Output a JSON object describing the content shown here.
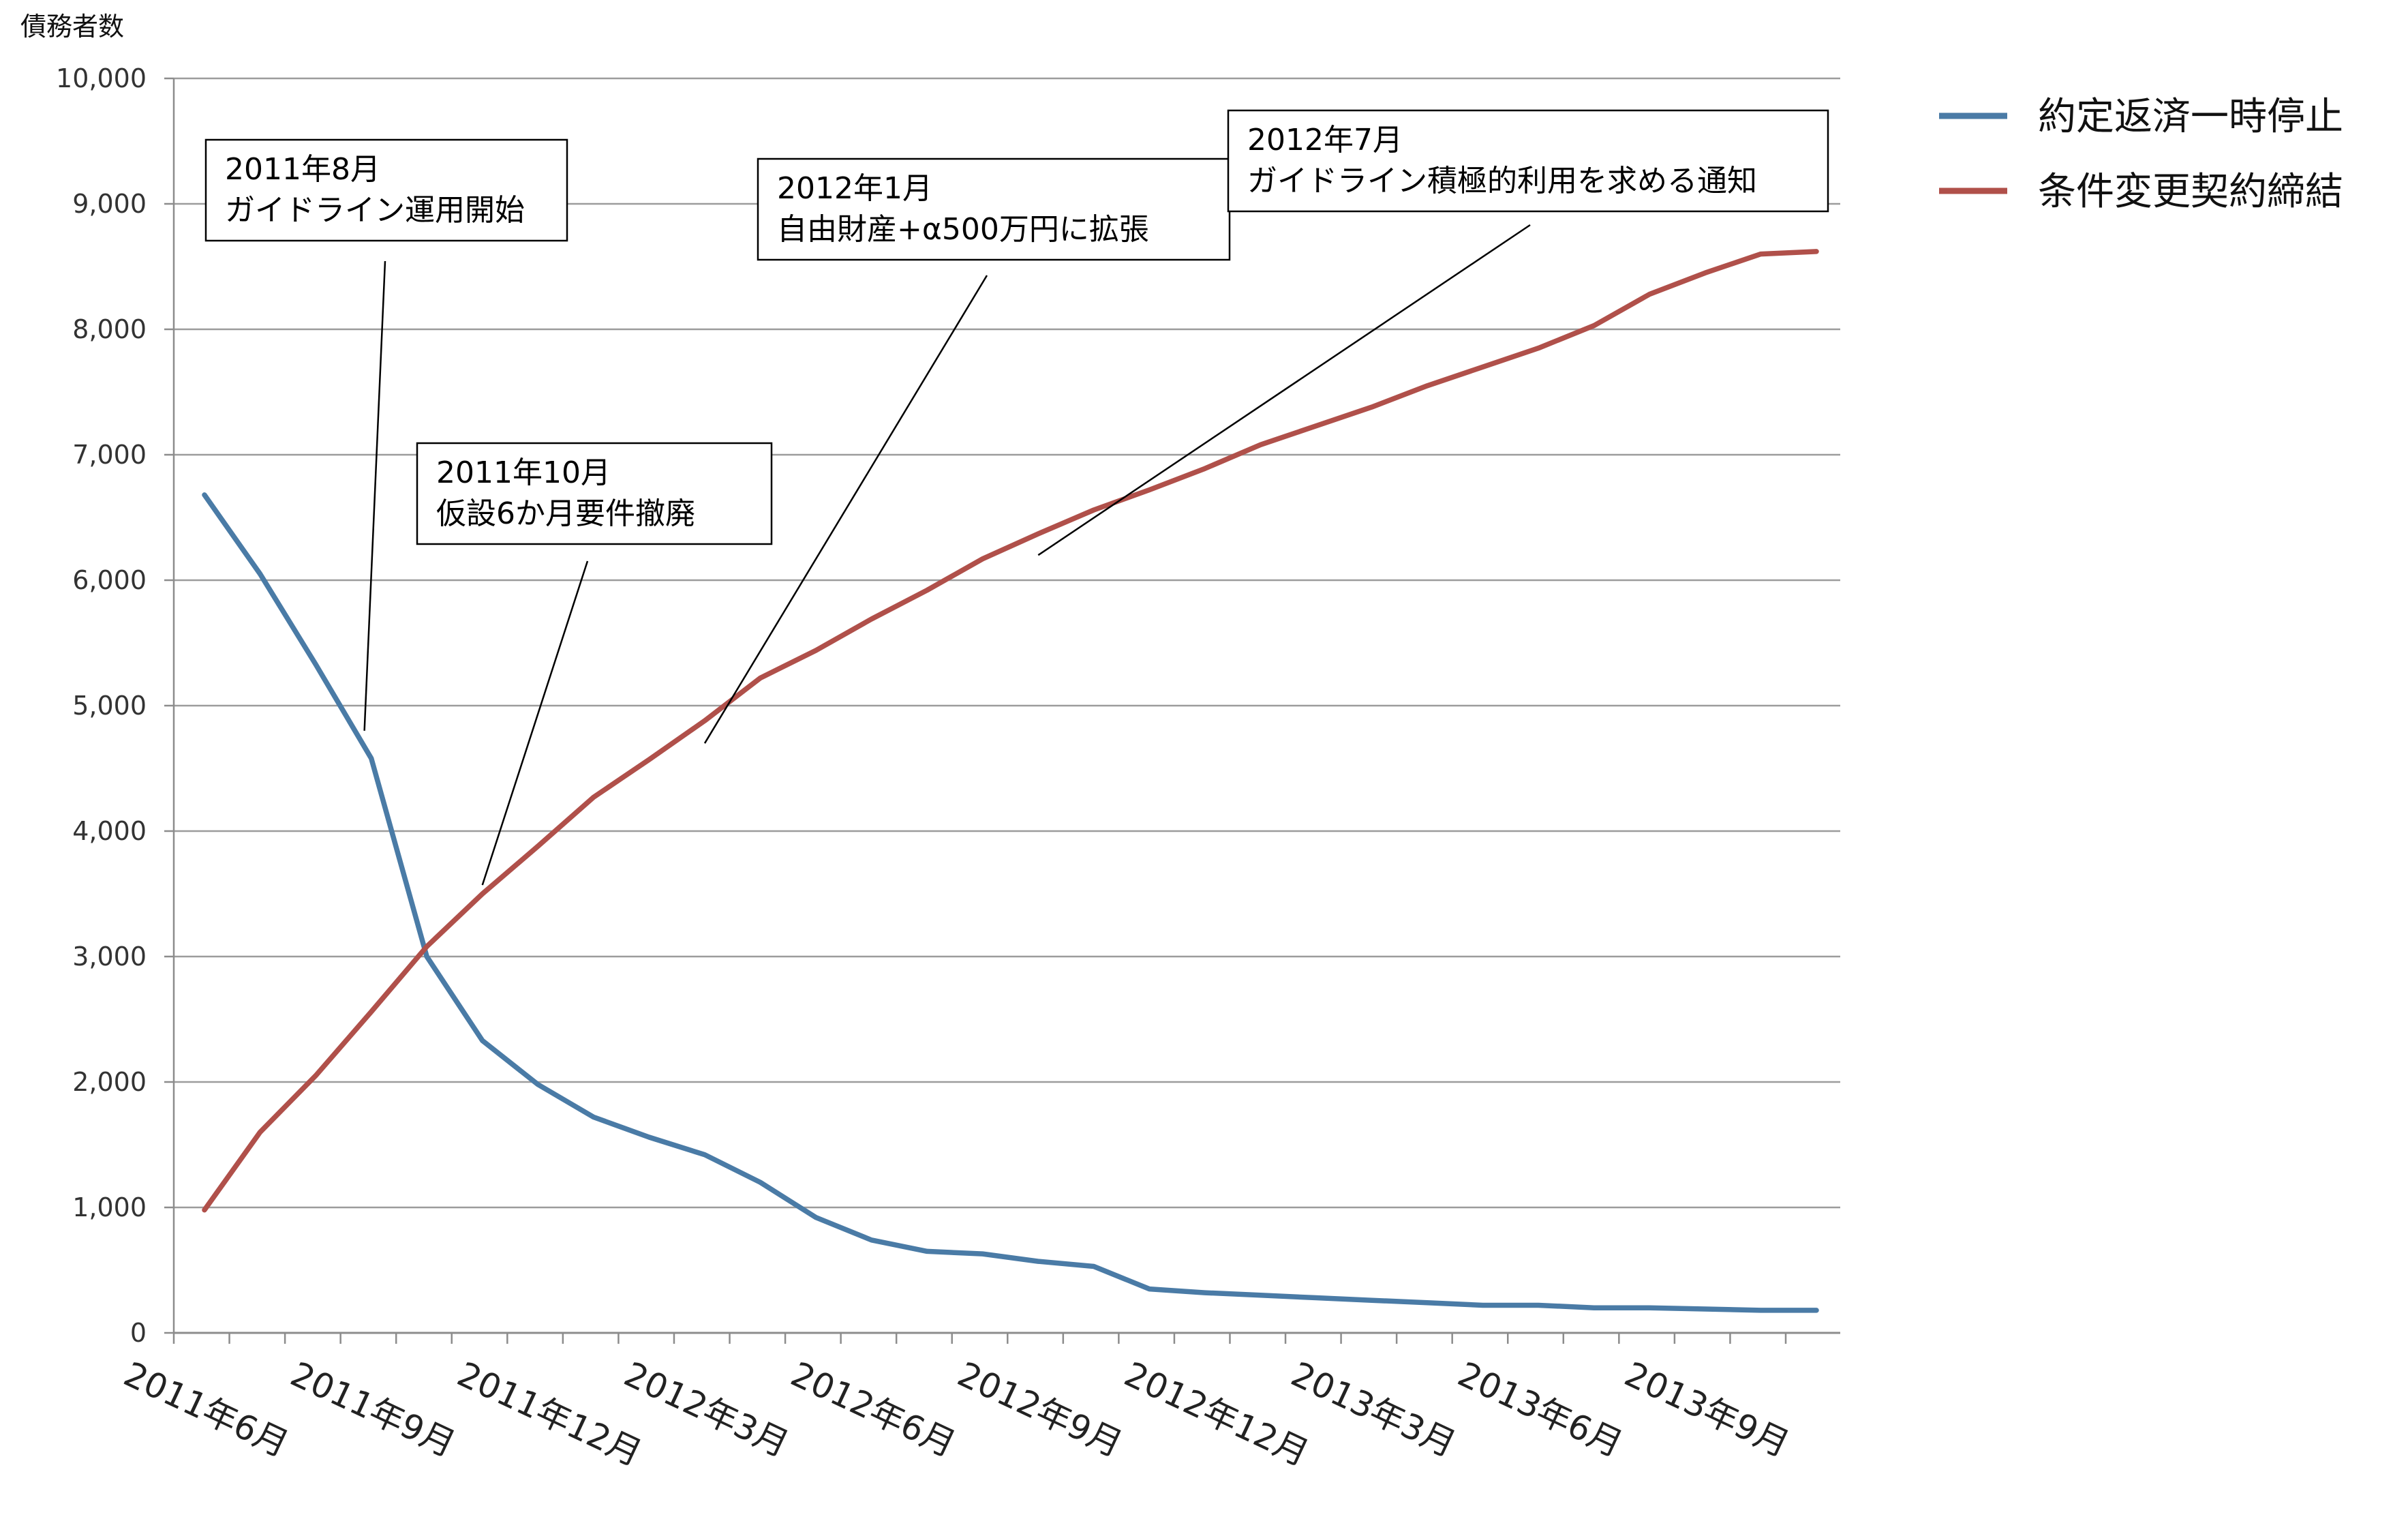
{
  "chart_data": {
    "type": "line",
    "ylabel": "債務者数",
    "ylim": [
      0,
      10000
    ],
    "yticks": [
      0,
      1000,
      2000,
      3000,
      4000,
      5000,
      6000,
      7000,
      8000,
      9000,
      10000
    ],
    "ytick_labels": [
      "0",
      "1,000",
      "2,000",
      "3,000",
      "4,000",
      "5,000",
      "6,000",
      "7,000",
      "8,000",
      "9,000",
      "10,000"
    ],
    "x": [
      "2011年4月",
      "2011年5月",
      "2011年6月",
      "2011年7月",
      "2011年8月",
      "2011年9月",
      "2011年10月",
      "2011年11月",
      "2011年12月",
      "2012年1月",
      "2012年2月",
      "2012年3月",
      "2012年4月",
      "2012年5月",
      "2012年6月",
      "2012年7月",
      "2012年8月",
      "2012年9月",
      "2012年10月",
      "2012年11月",
      "2012年12月",
      "2013年1月",
      "2013年2月",
      "2013年3月",
      "2013年4月",
      "2013年5月",
      "2013年6月",
      "2013年7月",
      "2013年8月",
      "2013年9月"
    ],
    "xtick_labels": [
      "2011年6月",
      "2011年9月",
      "2011年12月",
      "2012年3月",
      "2012年6月",
      "2012年9月",
      "2012年12月",
      "2013年3月",
      "2013年6月",
      "2013年9月"
    ],
    "xtick_positions": [
      2,
      5,
      8,
      11,
      14,
      17,
      20,
      23,
      26,
      29
    ],
    "grid": true,
    "legend_position": "top-right",
    "series": [
      {
        "name": "約定返済一時停止",
        "color": "#4a7ba6",
        "values": [
          6680,
          6050,
          5330,
          4580,
          3000,
          2330,
          1980,
          1720,
          1560,
          1420,
          1200,
          920,
          740,
          650,
          630,
          570,
          530,
          350,
          320,
          300,
          280,
          260,
          240,
          220,
          220,
          200,
          200,
          190,
          180,
          180
        ]
      },
      {
        "name": "条件変更契約締結",
        "color": "#b0504a",
        "values": [
          980,
          1600,
          2050,
          2560,
          3080,
          3500,
          3880,
          4270,
          4570,
          4880,
          5220,
          5440,
          5690,
          5920,
          6170,
          6370,
          6560,
          6720,
          6890,
          7080,
          7230,
          7380,
          7550,
          7700,
          7850,
          8030,
          8280,
          8450,
          8600,
          8620
        ]
      }
    ],
    "annotations": [
      {
        "lines": [
          "2011年8月",
          "ガイドライン運用開始"
        ],
        "point_index": 3,
        "point_value": 4800
      },
      {
        "lines": [
          "2011年10月",
          "仮設6か月要件撤廃"
        ],
        "point_index": 5,
        "point_value": 3570
      },
      {
        "lines": [
          "2012年1月",
          "自由財産+α500万円に拡張"
        ],
        "point_index": 9,
        "point_value": 4700
      },
      {
        "lines": [
          "2012年7月",
          "ガイドライン積極的利用を求める通知"
        ],
        "point_index": 15,
        "point_value": 6200
      }
    ]
  }
}
